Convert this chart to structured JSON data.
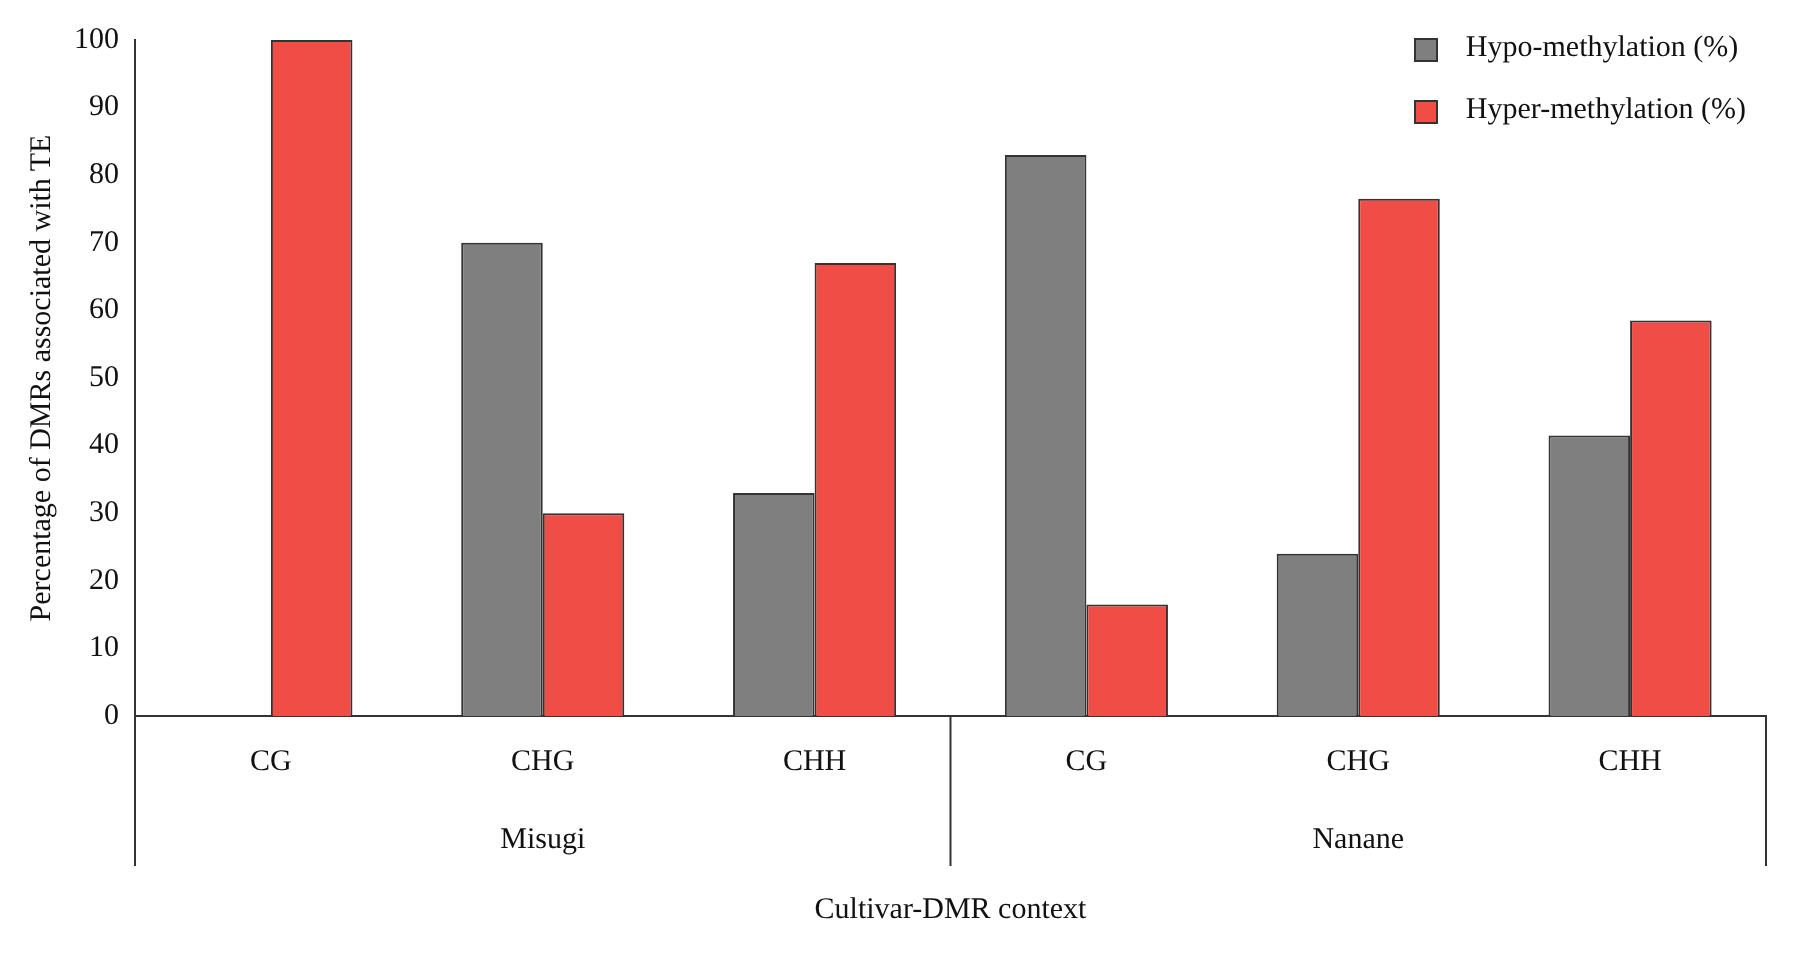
{
  "chart_data": {
    "type": "bar",
    "ylabel": "Percentage of DMRs associated with TE",
    "xlabel": "Cultivar-DMR context",
    "categories": [
      "CG",
      "CHG",
      "CHH",
      "CG",
      "CHG",
      "CHH"
    ],
    "series": [
      {
        "name": "Hypo-methylation (%)",
        "color": "#7f7f7f",
        "values": [
          0,
          70,
          33,
          83,
          24,
          41.5
        ]
      },
      {
        "name": "Hyper-methylation (%)",
        "color": "#ef4d45",
        "values": [
          100,
          30,
          67,
          16.5,
          76.5,
          58.5
        ]
      }
    ],
    "annotations": [
      "Misugi",
      "Nanane"
    ],
    "ylim": [
      0,
      100
    ],
    "yticks": [
      0,
      10,
      20,
      30,
      40,
      50,
      60,
      70,
      80,
      90,
      100
    ],
    "grid": false,
    "legend": "top right"
  }
}
